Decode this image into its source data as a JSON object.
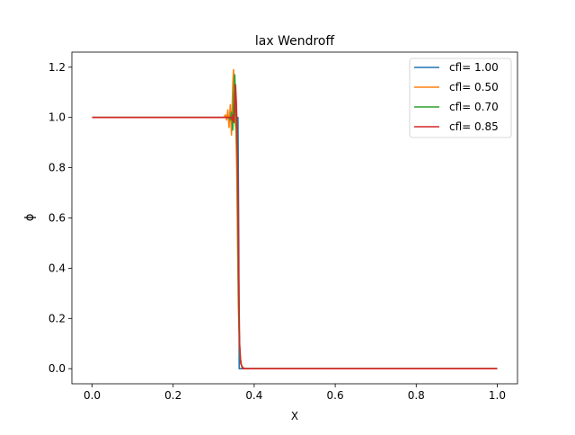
{
  "chart_data": {
    "type": "line",
    "title": "lax Wendroff",
    "xlabel": "X",
    "ylabel": "ϕ",
    "xlim": [
      -0.05,
      1.05
    ],
    "ylim": [
      -0.06,
      1.26
    ],
    "xticks": [
      0.0,
      0.2,
      0.4,
      0.6,
      0.8,
      1.0
    ],
    "xtick_labels": [
      "0.0",
      "0.2",
      "0.4",
      "0.6",
      "0.8",
      "1.0"
    ],
    "yticks": [
      0.0,
      0.2,
      0.4,
      0.6,
      0.8,
      1.0,
      1.2
    ],
    "ytick_labels": [
      "0.0",
      "0.2",
      "0.4",
      "0.6",
      "0.8",
      "1.0",
      "1.2"
    ],
    "grid": false,
    "legend_position": "top-right",
    "series": [
      {
        "name": "cfl= 1.00",
        "color": "#1f77b4",
        "x": [
          0.0,
          0.355,
          0.359,
          0.36,
          0.362,
          0.363,
          1.0
        ],
        "y": [
          1.0,
          1.0,
          1.0,
          1.0,
          0.5,
          0.0,
          0.0
        ]
      },
      {
        "name": "cfl= 0.50",
        "color": "#ff7f0e",
        "x": [
          0.0,
          0.325,
          0.329,
          0.332,
          0.335,
          0.338,
          0.341,
          0.344,
          0.347,
          0.349,
          0.351,
          0.353,
          0.355,
          0.357,
          0.359,
          0.361,
          0.364,
          0.367,
          0.371,
          0.378,
          1.0
        ],
        "y": [
          1.0,
          1.0,
          1.01,
          0.99,
          1.03,
          0.96,
          1.05,
          0.93,
          1.12,
          1.19,
          1.1,
          0.98,
          0.95,
          0.8,
          0.5,
          0.25,
          0.08,
          0.02,
          0.005,
          0.0,
          0.0
        ]
      },
      {
        "name": "cfl= 0.70",
        "color": "#2ca02c",
        "x": [
          0.0,
          0.335,
          0.338,
          0.341,
          0.344,
          0.347,
          0.35,
          0.352,
          0.354,
          0.356,
          0.358,
          0.36,
          0.362,
          0.365,
          0.369,
          0.375,
          1.0
        ],
        "y": [
          1.0,
          1.0,
          1.0,
          0.99,
          1.02,
          0.95,
          1.1,
          1.17,
          1.08,
          0.96,
          0.85,
          0.55,
          0.2,
          0.05,
          0.01,
          0.0,
          0.0
        ]
      },
      {
        "name": "cfl= 0.85",
        "color": "#d62728",
        "x": [
          0.0,
          0.34,
          0.343,
          0.346,
          0.348,
          0.35,
          0.352,
          0.354,
          0.356,
          0.358,
          0.36,
          0.362,
          0.364,
          0.367,
          0.372,
          1.0
        ],
        "y": [
          1.0,
          1.0,
          1.0,
          0.99,
          1.01,
          0.98,
          1.04,
          1.13,
          1.06,
          0.95,
          0.7,
          0.35,
          0.1,
          0.02,
          0.0,
          0.0
        ]
      }
    ]
  }
}
